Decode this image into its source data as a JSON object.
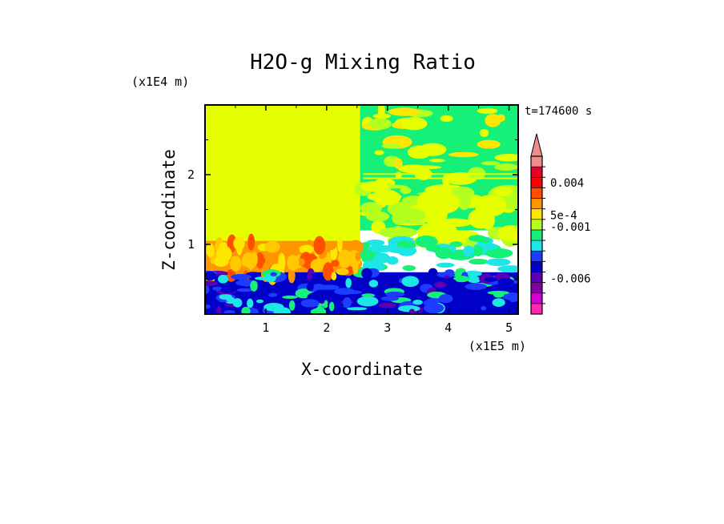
{
  "chart_data": {
    "type": "heatmap",
    "title": "H2O-g Mixing Ratio",
    "xlabel": "X-coordinate",
    "ylabel": "Z-coordinate",
    "x_scale_label": "(x1E5 m)",
    "y_scale_label": "(x1E4 m)",
    "time_label": "t=174600 s",
    "xlim": [
      0,
      5.15
    ],
    "ylim": [
      0,
      3.0
    ],
    "x_ticks": [
      {
        "value": 1,
        "label": "1"
      },
      {
        "value": 2,
        "label": "2"
      },
      {
        "value": 3,
        "label": "3"
      },
      {
        "value": 4,
        "label": "4"
      },
      {
        "value": 5,
        "label": "5"
      }
    ],
    "y_ticks": [
      {
        "value": 1,
        "label": "1"
      },
      {
        "value": 2,
        "label": "2"
      }
    ],
    "colorbar": {
      "colors": [
        "#ff2ab4",
        "#d200d2",
        "#8200a0",
        "#5a00b4",
        "#0000c8",
        "#1e3cff",
        "#1ee6e6",
        "#14f078",
        "#b4ff1e",
        "#ffe600",
        "#ff9600",
        "#ff5000",
        "#ff0000",
        "#e60028",
        "#f08c8c"
      ],
      "labels": [
        {
          "level": 12.5,
          "text": "0.004"
        },
        {
          "level": 9.4,
          "text": "5e-4"
        },
        {
          "level": 8.3,
          "text": "-0.001"
        },
        {
          "level": 3.4,
          "text": "-0.006"
        }
      ],
      "extend": "max"
    },
    "regions": [
      {
        "x0": 0.0,
        "x1": 2.55,
        "z0": 0.6,
        "z1": 3.0,
        "color": "#e6ff00",
        "note": "upper-left near-zero"
      },
      {
        "x0": 2.55,
        "x1": 5.15,
        "z0": 1.2,
        "z1": 3.0,
        "color": "#14f078",
        "note": "upper-right slightly negative"
      },
      {
        "x0": 0.0,
        "x1": 2.55,
        "z0": 0.6,
        "z1": 1.05,
        "color": "#ff9600",
        "note": "positive plumes"
      },
      {
        "x0": 0.0,
        "x1": 5.15,
        "z0": 0.0,
        "z1": 0.6,
        "color": "#0000c8",
        "note": "boundary layer negative"
      }
    ]
  }
}
